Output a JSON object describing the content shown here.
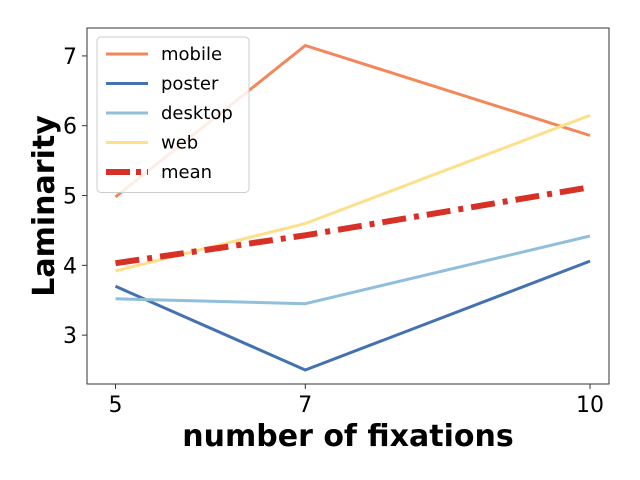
{
  "chart_data": {
    "type": "line",
    "title": "",
    "xlabel": "number of fixations",
    "ylabel": "Laminarity",
    "x": [
      5,
      7,
      10
    ],
    "x_ticks": [
      5,
      7,
      10
    ],
    "y_ticks": [
      3,
      4,
      5,
      6,
      7
    ],
    "xlim": [
      4.7,
      10.2
    ],
    "ylim": [
      2.3,
      7.4
    ],
    "grid": false,
    "legend_position": "top-left",
    "series": [
      {
        "name": "mobile",
        "values": [
          4.98,
          7.15,
          5.86
        ],
        "color": "#f4875a",
        "style": "solid"
      },
      {
        "name": "poster",
        "values": [
          3.7,
          2.5,
          4.06
        ],
        "color": "#4472b0",
        "style": "solid"
      },
      {
        "name": "desktop",
        "values": [
          3.52,
          3.45,
          4.42
        ],
        "color": "#91bfdb",
        "style": "solid"
      },
      {
        "name": "web",
        "values": [
          3.92,
          4.6,
          6.15
        ],
        "color": "#fee08b",
        "style": "solid"
      },
      {
        "name": "mean",
        "values": [
          4.03,
          4.43,
          5.12
        ],
        "color": "#d73027",
        "style": "dashdot"
      }
    ]
  }
}
